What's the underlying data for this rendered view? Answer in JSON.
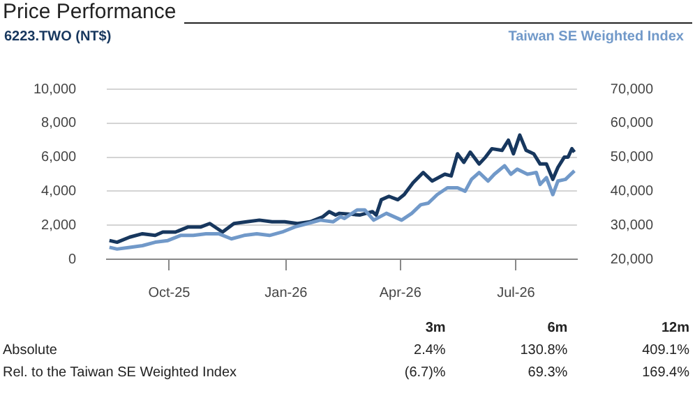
{
  "chart_data": {
    "type": "line",
    "title": "Price Performance",
    "xlim": [
      "2025-08-13",
      "2026-08-18"
    ],
    "xticks": [
      {
        "value": "2025-10-01",
        "label": "Oct-25"
      },
      {
        "value": "2026-01-01",
        "label": "Jan-26"
      },
      {
        "value": "2026-04-01",
        "label": "Apr-26"
      },
      {
        "value": "2026-07-01",
        "label": "Jul-26"
      }
    ],
    "ylim": [
      0,
      10000
    ],
    "yticks": [
      0,
      {
        "value": 2000,
        "label": "2,000"
      },
      {
        "value": 4000,
        "label": "4,000"
      },
      {
        "value": 6000,
        "label": "6,000"
      },
      {
        "value": 8000,
        "label": "8,000"
      },
      {
        "value": 10000,
        "label": "10,000"
      }
    ],
    "y2lim": [
      20000,
      70000
    ],
    "y2ticks": [
      {
        "value": 20000,
        "label": "20,000"
      },
      {
        "value": 30000,
        "label": "30,000"
      },
      {
        "value": 40000,
        "label": "40,000"
      },
      {
        "value": 50000,
        "label": "50,000"
      },
      {
        "value": 60000,
        "label": "60,000"
      },
      {
        "value": 70000,
        "label": "70,000"
      }
    ],
    "grid": "y",
    "series": [
      {
        "name": "Taiwan SE Weighted Index",
        "color": "#7199c9",
        "axis": "y2",
        "x": [
          "2025-08-15",
          "2025-08-21",
          "2025-08-31",
          "2025-09-10",
          "2025-09-20",
          "2025-09-30",
          "2025-10-10",
          "2025-10-20",
          "2025-10-30",
          "2025-11-09",
          "2025-11-19",
          "2025-11-29",
          "2025-12-09",
          "2025-12-19",
          "2025-12-29",
          "2026-01-08",
          "2026-01-18",
          "2026-01-28",
          "2026-02-07",
          "2026-02-13",
          "2026-02-16",
          "2026-02-26",
          "2026-03-04",
          "2026-03-11",
          "2026-03-21",
          "2026-04-02",
          "2026-04-10",
          "2026-04-17",
          "2026-04-23",
          "2026-04-30",
          "2026-05-08",
          "2026-05-16",
          "2026-05-22",
          "2026-05-27",
          "2026-06-02",
          "2026-06-09",
          "2026-06-14",
          "2026-06-22",
          "2026-06-27",
          "2026-07-02",
          "2026-07-10",
          "2026-07-17",
          "2026-07-20",
          "2026-07-25",
          "2026-07-30",
          "2026-08-03",
          "2026-08-09",
          "2026-08-16"
        ],
        "values": [
          23500,
          23000,
          23500,
          24000,
          25000,
          25500,
          27000,
          27000,
          27500,
          27500,
          26000,
          27000,
          27500,
          27000,
          28000,
          29500,
          30500,
          31500,
          31000,
          32500,
          32000,
          34500,
          34500,
          31500,
          33500,
          31500,
          33500,
          36000,
          36500,
          39000,
          41000,
          41000,
          40000,
          43500,
          45500,
          43000,
          45000,
          47500,
          45000,
          46500,
          45000,
          45500,
          42000,
          44000,
          39000,
          43000,
          43500,
          46000
        ]
      },
      {
        "name": "6223.TWO (NT$)",
        "color": "#17375e",
        "x": [
          "2025-08-15",
          "2025-08-21",
          "2025-08-31",
          "2025-09-10",
          "2025-09-20",
          "2025-09-26",
          "2025-10-06",
          "2025-10-16",
          "2025-10-26",
          "2025-11-02",
          "2025-11-12",
          "2025-11-21",
          "2025-12-01",
          "2025-12-11",
          "2025-12-21",
          "2025-12-31",
          "2026-01-10",
          "2026-01-20",
          "2026-01-30",
          "2026-02-04",
          "2026-02-09",
          "2026-02-12",
          "2026-02-28",
          "2026-03-10",
          "2026-03-13",
          "2026-03-17",
          "2026-03-23",
          "2026-03-30",
          "2026-04-04",
          "2026-04-11",
          "2026-04-19",
          "2026-04-26",
          "2026-05-06",
          "2026-05-11",
          "2026-05-16",
          "2026-05-21",
          "2026-05-26",
          "2026-06-02",
          "2026-06-07",
          "2026-06-12",
          "2026-06-20",
          "2026-06-25",
          "2026-06-29",
          "2026-07-04",
          "2026-07-09",
          "2026-07-15",
          "2026-07-20",
          "2026-07-25",
          "2026-07-30",
          "2026-08-03",
          "2026-08-08",
          "2026-08-11",
          "2026-08-14",
          "2026-08-16"
        ],
        "values": [
          1100,
          1000,
          1300,
          1500,
          1400,
          1600,
          1600,
          1900,
          1900,
          2100,
          1600,
          2100,
          2200,
          2300,
          2200,
          2200,
          2100,
          2200,
          2500,
          2800,
          2600,
          2700,
          2600,
          2800,
          2600,
          3500,
          3700,
          3500,
          3800,
          4500,
          5100,
          4600,
          5000,
          4900,
          6200,
          5700,
          6300,
          5600,
          6000,
          6500,
          6400,
          7000,
          6200,
          7300,
          6400,
          6200,
          5600,
          5600,
          4700,
          5400,
          6000,
          6000,
          6500,
          6300
        ]
      }
    ],
    "annotations": [
      "3m",
      "6m",
      "12m",
      "Absolute",
      "2.4%",
      "130.8%",
      "409.1%",
      "Rel. to the Taiwan SE Weighted Index",
      "(6.7)%",
      "69.3%",
      "169.4%"
    ]
  }
}
